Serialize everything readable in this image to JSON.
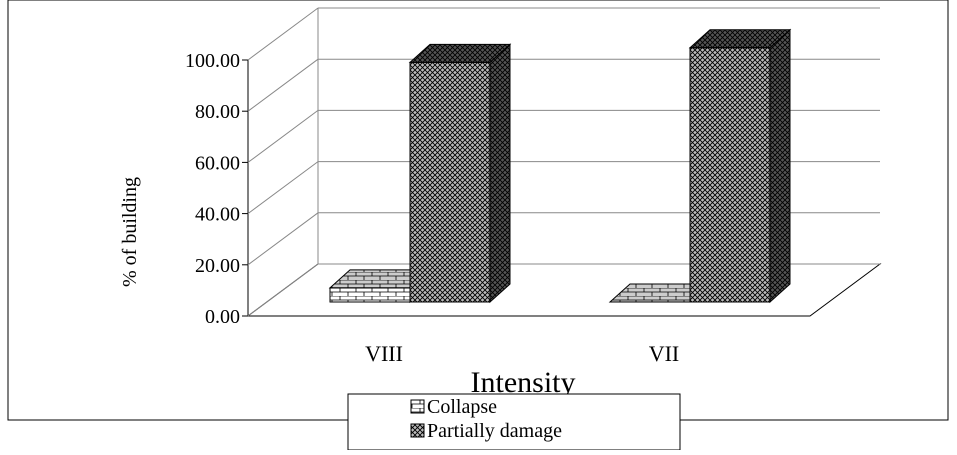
{
  "chart_data": {
    "type": "bar3d",
    "categories": [
      "VIII",
      "VII"
    ],
    "series": [
      {
        "name": "Collapse",
        "color": "#ffffff",
        "values": [
          5.5,
          0
        ]
      },
      {
        "name": "Partially damage",
        "color": "#bbbbbb",
        "values": [
          93.6,
          99.3
        ]
      }
    ],
    "xlabel": "Intensity",
    "ylabel": "% of building",
    "ylim": [
      0,
      100
    ],
    "yticks": [
      {
        "value": 0,
        "label": "0.00"
      },
      {
        "value": 20,
        "label": "20.00"
      },
      {
        "value": 40,
        "label": "40.00"
      },
      {
        "value": 60,
        "label": "60.00"
      },
      {
        "value": 80,
        "label": "80.00"
      },
      {
        "value": 100,
        "label": "100.00"
      }
    ],
    "grid": true
  }
}
